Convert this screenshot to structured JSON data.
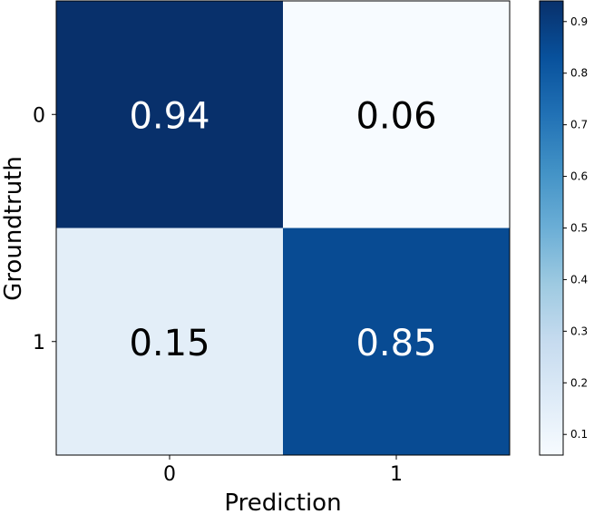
{
  "chart_data": {
    "type": "heatmap",
    "title": "",
    "xlabel": "Prediction",
    "ylabel": "Groundtruth",
    "x_categories": [
      "0",
      "1"
    ],
    "y_categories": [
      "0",
      "1"
    ],
    "values": [
      [
        0.94,
        0.06
      ],
      [
        0.15,
        0.85
      ]
    ],
    "cell_labels": [
      [
        "0.94",
        "0.06"
      ],
      [
        "0.15",
        "0.85"
      ]
    ],
    "colormap": "Blues",
    "colorbar": {
      "min": 0.06,
      "max": 0.94,
      "ticks": [
        0.1,
        0.2,
        0.3,
        0.4,
        0.5,
        0.6,
        0.7,
        0.8,
        0.9
      ],
      "tick_labels": [
        "0.1",
        "0.2",
        "0.3",
        "0.4",
        "0.5",
        "0.6",
        "0.7",
        "0.8",
        "0.9"
      ]
    },
    "colors": {
      "low": "#f7fbff",
      "high": "#08306b",
      "text_dark": "#000000",
      "text_light": "#ffffff"
    },
    "grid": false
  }
}
